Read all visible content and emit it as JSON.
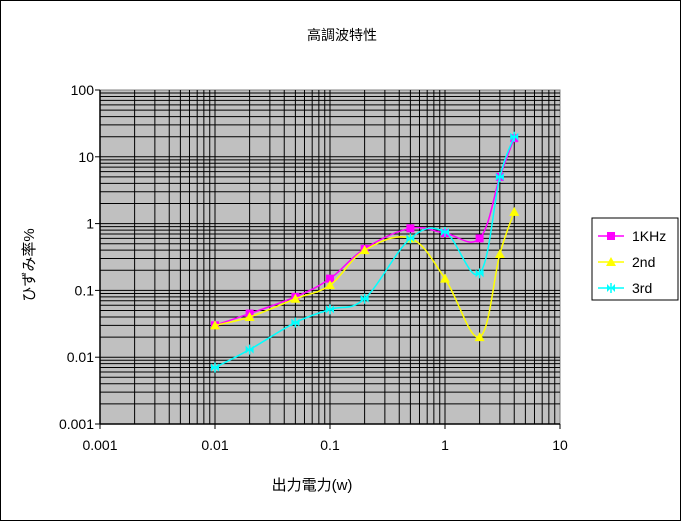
{
  "chart_data": {
    "type": "line",
    "title": "高調波特性",
    "xlabel": "出力電力(w)",
    "ylabel": "ひずみ率%",
    "xscale": "log",
    "yscale": "log",
    "xlim": [
      0.001,
      10
    ],
    "ylim": [
      0.001,
      100
    ],
    "x_ticks": [
      "0.001",
      "0.01",
      "0.1",
      "1",
      "10"
    ],
    "y_ticks": [
      "0.001",
      "0.01",
      "0.1",
      "1",
      "10",
      "100"
    ],
    "grid": true,
    "legend": "right",
    "series": [
      {
        "name": "1KHz",
        "color": "#ff00ff",
        "marker": "square",
        "x": [
          0.01,
          0.02,
          0.05,
          0.1,
          0.2,
          0.5,
          1,
          2,
          3,
          4
        ],
        "y": [
          0.03,
          0.045,
          0.08,
          0.15,
          0.42,
          0.85,
          0.72,
          0.6,
          5,
          19
        ]
      },
      {
        "name": "2nd",
        "color": "#ffff00",
        "marker": "triangle",
        "x": [
          0.01,
          0.02,
          0.05,
          0.1,
          0.2,
          0.5,
          1,
          2,
          3,
          4
        ],
        "y": [
          0.03,
          0.04,
          0.075,
          0.12,
          0.4,
          0.6,
          0.15,
          0.02,
          0.35,
          1.5
        ]
      },
      {
        "name": "3rd",
        "color": "#00ffff",
        "marker": "bowtie",
        "x": [
          0.01,
          0.02,
          0.05,
          0.1,
          0.2,
          0.5,
          1,
          2,
          3,
          4
        ],
        "y": [
          0.007,
          0.013,
          0.033,
          0.052,
          0.075,
          0.6,
          0.75,
          0.18,
          5,
          20
        ]
      }
    ]
  }
}
